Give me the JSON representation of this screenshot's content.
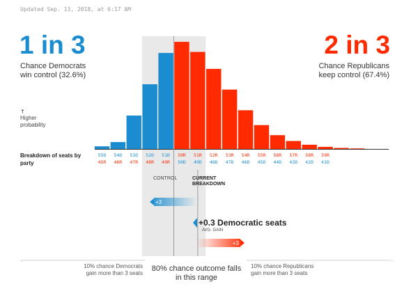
{
  "header": {
    "updated": "Updated Sep. 13, 2018, at 6:17 AM"
  },
  "democrats": {
    "odds": "1 in 3",
    "line1": "Chance Democrats",
    "line2": "win control (32.6%)"
  },
  "republicans": {
    "odds": "2 in 3",
    "line1": "Chance Republicans",
    "line2": "keep control (67.4%)"
  },
  "colors": {
    "dem": "#1a8ccf",
    "rep": "#ff2a00",
    "band": "#e9e9e9"
  },
  "axis": {
    "arrow": "↑",
    "higher_l1": "Higher",
    "higher_l2": "probability",
    "breakdown_l1": "Breakdown of seats by",
    "breakdown_l2": "party"
  },
  "markers": {
    "control": "CONTROL",
    "current_l1": "CURRENT",
    "current_l2": "BREAKDOWN"
  },
  "gain": {
    "title": "+0.3 Democratic seats",
    "sub": "AVG. GAIN",
    "dem_plus": "+3",
    "rep_plus": "+3"
  },
  "footer": {
    "left_l1": "10% chance Democrats",
    "left_l2": "gain more than 3 seats",
    "center_l1": "80% chance outcome falls",
    "center_l2": "in this range",
    "right_l1": "10% chance Republicans",
    "right_l2": "gain more than 3 seats"
  },
  "chart_data": {
    "type": "bar",
    "x": [
      45,
      46,
      47,
      48,
      49,
      50,
      51,
      52,
      53,
      54,
      55,
      56,
      57,
      58,
      59,
      60,
      61
    ],
    "series": [
      {
        "party": "dem",
        "values": [
          0.5,
          1.3,
          6.3,
          12.2,
          18.1,
          0,
          0,
          0,
          0,
          0,
          0,
          0,
          0,
          0,
          0,
          0,
          0
        ]
      },
      {
        "party": "rep",
        "values": [
          0,
          0,
          0,
          0,
          0,
          20.2,
          18.3,
          15.1,
          11.2,
          7.3,
          4.5,
          2.6,
          1.5,
          0.8,
          0.4,
          0.2,
          0.1
        ]
      }
    ],
    "ylim": [
      0,
      21
    ],
    "tick_labels": [
      {
        "dem": "55D",
        "rep": "45R"
      },
      {
        "dem": "54D",
        "rep": "46R"
      },
      {
        "dem": "53D",
        "rep": "47R"
      },
      {
        "dem": "52D",
        "rep": "48R"
      },
      {
        "dem": "51D",
        "rep": "49R"
      },
      {
        "dem": "50R",
        "rep": "50D"
      },
      {
        "dem": "51R",
        "rep": "49D"
      },
      {
        "dem": "52R",
        "rep": "48D"
      },
      {
        "dem": "53R",
        "rep": "47D"
      },
      {
        "dem": "54R",
        "rep": "46D"
      },
      {
        "dem": "55R",
        "rep": "45D"
      },
      {
        "dem": "56R",
        "rep": "44D"
      },
      {
        "dem": "57R",
        "rep": "43D"
      },
      {
        "dem": "58R",
        "rep": "42D"
      },
      {
        "dem": "59R",
        "rep": "41D"
      }
    ],
    "band": {
      "from": 48,
      "to": 51
    },
    "control_line": 49.5,
    "current_line": 51,
    "grid": false,
    "legend": "none"
  }
}
